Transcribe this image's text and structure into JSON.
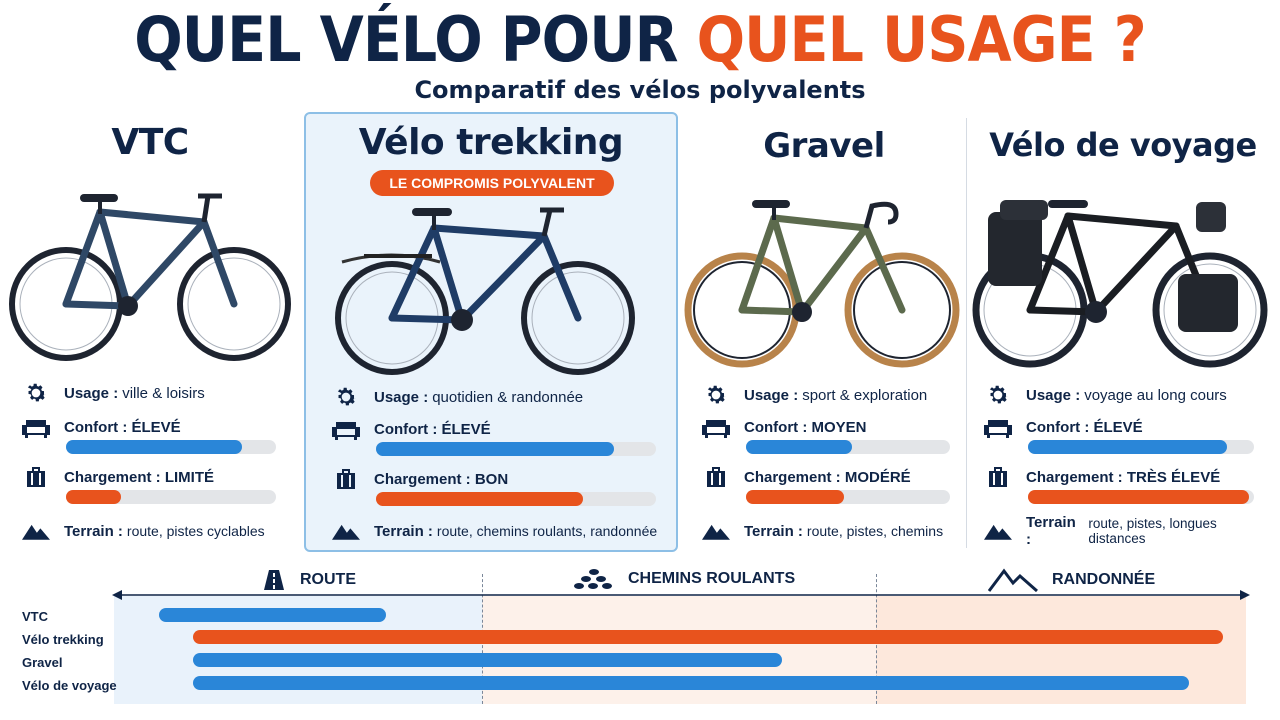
{
  "header": {
    "title_part1": "QUEL VÉLO POUR",
    "title_part2": "QUEL USAGE ?",
    "subtitle": "Comparatif des vélos polyvalents"
  },
  "colors": {
    "navy": "#0f2446",
    "orange": "#e8531d",
    "blue": "#2a86d8",
    "track": "#e3e5e8"
  },
  "bikes": [
    {
      "name": "VTC",
      "usage_label": "Usage :",
      "usage_value": "ville & loisirs",
      "comfort_label": "Confort : ÉLEVÉ",
      "comfort_level": 0.84,
      "cargo_label": "Chargement : LIMITÉ",
      "cargo_level": 0.26,
      "terrain_label": "Terrain :",
      "terrain_value": "route, pistes cyclables"
    },
    {
      "name": "Vélo trekking",
      "badge": "LE COMPROMIS POLYVALENT",
      "usage_label": "Usage :",
      "usage_value": "quotidien & randonnée",
      "comfort_label": "Confort : ÉLEVÉ",
      "comfort_level": 0.85,
      "cargo_label": "Chargement : BON",
      "cargo_level": 0.74,
      "terrain_label": "Terrain :",
      "terrain_value": "route, chemins roulants, randonnée"
    },
    {
      "name": "Gravel",
      "usage_label": "Usage :",
      "usage_value": "sport & exploration",
      "comfort_label": "Confort : MOYEN",
      "comfort_level": 0.52,
      "cargo_label": "Chargement : MODÉRÉ",
      "cargo_level": 0.48,
      "terrain_label": "Terrain :",
      "terrain_value": "route, pistes, chemins"
    },
    {
      "name": "Vélo de voyage",
      "usage_label": "Usage :",
      "usage_value": "voyage au long cours",
      "comfort_label": "Confort : ÉLEVÉ",
      "comfort_level": 0.88,
      "cargo_label": "Chargement : TRÈS ÉLEVÉ",
      "cargo_level": 0.98,
      "terrain_label": "Terrain :",
      "terrain_value": "route, pistes, longues distances"
    }
  ],
  "terrain_scale": {
    "zones": [
      "ROUTE",
      "CHEMINS ROULANTS",
      "RANDONNÉE"
    ],
    "rows": [
      {
        "name": "VTC",
        "start": 0.04,
        "end": 0.24,
        "color": "#2a86d8"
      },
      {
        "name": "Vélo trekking",
        "start": 0.07,
        "end": 0.98,
        "color": "#e8531d"
      },
      {
        "name": "Gravel",
        "start": 0.07,
        "end": 0.59,
        "color": "#2a86d8"
      },
      {
        "name": "Vélo de voyage",
        "start": 0.07,
        "end": 0.95,
        "color": "#2a86d8"
      }
    ]
  }
}
